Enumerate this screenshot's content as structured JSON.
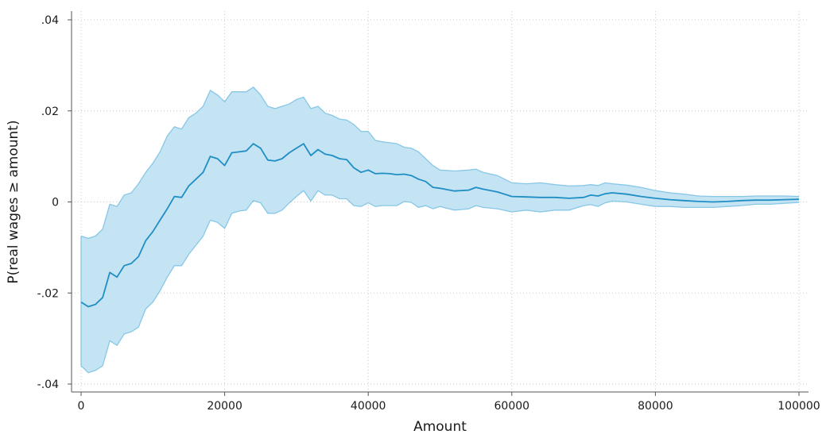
{
  "chart_data": {
    "type": "line",
    "xlabel": "Amount",
    "ylabel": "P(real wages ≥ amount)",
    "xlim": [
      0,
      100000
    ],
    "ylim": [
      -0.04,
      0.04
    ],
    "xticks": [
      0,
      20000,
      40000,
      60000,
      80000,
      100000
    ],
    "xtick_labels": [
      "0",
      "20000",
      "40000",
      "60000",
      "80000",
      "100000"
    ],
    "yticks": [
      -0.04,
      -0.02,
      0,
      0.02,
      0.04
    ],
    "ytick_labels": [
      "-.04",
      "-.02",
      "0",
      ".02",
      ".04"
    ],
    "grid": true,
    "colors": {
      "line": "#1f8ec4",
      "band_fill": "#c4e4f4",
      "band_edge": "#87c7e6"
    },
    "x": [
      0,
      1000,
      2000,
      3000,
      4000,
      5000,
      6000,
      7000,
      8000,
      9000,
      10000,
      11000,
      12000,
      13000,
      14000,
      15000,
      16000,
      17000,
      18000,
      19000,
      20000,
      21000,
      22000,
      23000,
      24000,
      25000,
      26000,
      27000,
      28000,
      29000,
      30000,
      31000,
      32000,
      33000,
      34000,
      35000,
      36000,
      37000,
      38000,
      39000,
      40000,
      41000,
      42000,
      43000,
      44000,
      45000,
      46000,
      47000,
      48000,
      49000,
      50000,
      52000,
      54000,
      55000,
      56000,
      58000,
      60000,
      62000,
      64000,
      66000,
      68000,
      70000,
      71000,
      72000,
      73000,
      74000,
      76000,
      78000,
      80000,
      82000,
      84000,
      86000,
      88000,
      90000,
      92000,
      94000,
      96000,
      98000,
      100000
    ],
    "series": [
      {
        "role": "estimate",
        "values": [
          -0.022,
          -0.023,
          -0.0225,
          -0.021,
          -0.0155,
          -0.0165,
          -0.014,
          -0.0135,
          -0.012,
          -0.0085,
          -0.0065,
          -0.004,
          -0.0015,
          0.0012,
          0.001,
          0.0035,
          0.005,
          0.0065,
          0.01,
          0.0095,
          0.008,
          0.0108,
          0.011,
          0.0112,
          0.0128,
          0.0118,
          0.0092,
          0.009,
          0.0095,
          0.0108,
          0.0118,
          0.0128,
          0.0102,
          0.0115,
          0.0105,
          0.0102,
          0.0095,
          0.0093,
          0.0075,
          0.0065,
          0.007,
          0.0062,
          0.0063,
          0.0062,
          0.006,
          0.0061,
          0.0058,
          0.005,
          0.0045,
          0.0032,
          0.003,
          0.0024,
          0.0026,
          0.0032,
          0.0028,
          0.0022,
          0.0012,
          0.0011,
          0.001,
          0.001,
          0.0008,
          0.001,
          0.0015,
          0.0013,
          0.0018,
          0.002,
          0.0017,
          0.0012,
          0.0008,
          0.0005,
          0.0003,
          0.0001,
          0.0,
          0.0001,
          0.0003,
          0.0004,
          0.0004,
          0.0005,
          0.0006
        ]
      },
      {
        "role": "upper-ci",
        "values": [
          -0.0075,
          -0.008,
          -0.0075,
          -0.006,
          -0.0005,
          -0.001,
          0.0015,
          0.002,
          0.004,
          0.0065,
          0.0085,
          0.011,
          0.0145,
          0.0165,
          0.016,
          0.0185,
          0.0195,
          0.021,
          0.0245,
          0.0235,
          0.022,
          0.0242,
          0.0242,
          0.0242,
          0.0252,
          0.0235,
          0.021,
          0.0205,
          0.021,
          0.0215,
          0.0225,
          0.023,
          0.0205,
          0.021,
          0.0195,
          0.019,
          0.0182,
          0.018,
          0.017,
          0.0155,
          0.0155,
          0.0135,
          0.0132,
          0.013,
          0.0128,
          0.012,
          0.0118,
          0.011,
          0.0095,
          0.008,
          0.007,
          0.0068,
          0.007,
          0.0072,
          0.0065,
          0.0058,
          0.0042,
          0.004,
          0.0042,
          0.0038,
          0.0035,
          0.0036,
          0.0038,
          0.0036,
          0.0042,
          0.004,
          0.0037,
          0.0032,
          0.0025,
          0.002,
          0.0017,
          0.0013,
          0.0012,
          0.0012,
          0.0012,
          0.0013,
          0.0013,
          0.0013,
          0.0012
        ]
      },
      {
        "role": "lower-ci",
        "values": [
          -0.036,
          -0.0375,
          -0.037,
          -0.036,
          -0.0305,
          -0.0315,
          -0.029,
          -0.0285,
          -0.0275,
          -0.0235,
          -0.022,
          -0.0195,
          -0.0165,
          -0.014,
          -0.014,
          -0.0115,
          -0.0095,
          -0.0075,
          -0.004,
          -0.0045,
          -0.0058,
          -0.0025,
          -0.002,
          -0.0018,
          0.0003,
          -0.0002,
          -0.0025,
          -0.0025,
          -0.0018,
          -0.0002,
          0.0012,
          0.0025,
          0.0002,
          0.0025,
          0.0015,
          0.0015,
          0.0007,
          0.0007,
          -0.0008,
          -0.001,
          -0.0002,
          -0.001,
          -0.0008,
          -0.0008,
          -0.0008,
          0.0001,
          -0.0001,
          -0.0012,
          -0.0008,
          -0.0015,
          -0.001,
          -0.0018,
          -0.0015,
          -0.0008,
          -0.0012,
          -0.0015,
          -0.0022,
          -0.0018,
          -0.0022,
          -0.0018,
          -0.0018,
          -0.0008,
          -0.0006,
          -0.001,
          -0.0002,
          0.0002,
          0.0,
          -0.0005,
          -0.001,
          -0.001,
          -0.0012,
          -0.0012,
          -0.0012,
          -0.001,
          -0.0008,
          -0.0005,
          -0.0005,
          -0.0003,
          -0.0001
        ]
      }
    ]
  }
}
